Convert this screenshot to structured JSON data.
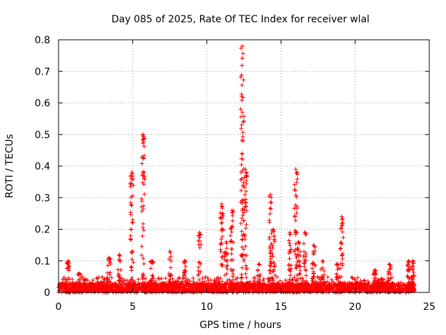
{
  "chart_data": {
    "type": "scatter",
    "title": "Day 085 of 2025, Rate Of TEC Index for receiver wlal",
    "xlabel": "GPS time / hours",
    "ylabel": "ROTI / TECUs",
    "xlim": [
      0,
      25
    ],
    "ylim": [
      0,
      0.8
    ],
    "xticks": [
      0,
      5,
      10,
      15,
      20,
      25
    ],
    "yticks": [
      0,
      0.1,
      0.2,
      0.3,
      0.4,
      0.5,
      0.6,
      0.7,
      0.8
    ],
    "xtick_labels": [
      "0",
      "5",
      "10",
      "15",
      "20",
      "25"
    ],
    "ytick_labels": [
      "0",
      "0.1",
      "0.2",
      "0.3",
      "0.4",
      "0.5",
      "0.6",
      "0.7",
      "0.8"
    ],
    "grid": true,
    "marker": "+",
    "color": "#ff0000",
    "baseline": {
      "x_range": [
        0,
        24
      ],
      "typical_max": 0.05
    },
    "spikes": [
      {
        "x": 0.65,
        "ymax": 0.1
      },
      {
        "x": 1.4,
        "ymax": 0.06
      },
      {
        "x": 3.4,
        "ymax": 0.11
      },
      {
        "x": 4.1,
        "ymax": 0.12
      },
      {
        "x": 4.95,
        "ymax": 0.38
      },
      {
        "x": 5.7,
        "ymax": 0.5
      },
      {
        "x": 6.3,
        "ymax": 0.1
      },
      {
        "x": 7.5,
        "ymax": 0.13
      },
      {
        "x": 8.5,
        "ymax": 0.1
      },
      {
        "x": 9.5,
        "ymax": 0.19
      },
      {
        "x": 11.0,
        "ymax": 0.28
      },
      {
        "x": 11.3,
        "ymax": 0.16
      },
      {
        "x": 11.7,
        "ymax": 0.26
      },
      {
        "x": 12.4,
        "ymax": 0.78
      },
      {
        "x": 12.6,
        "ymax": 0.39
      },
      {
        "x": 13.5,
        "ymax": 0.09
      },
      {
        "x": 14.3,
        "ymax": 0.31
      },
      {
        "x": 14.5,
        "ymax": 0.2
      },
      {
        "x": 15.6,
        "ymax": 0.19
      },
      {
        "x": 16.0,
        "ymax": 0.39
      },
      {
        "x": 16.2,
        "ymax": 0.16
      },
      {
        "x": 16.6,
        "ymax": 0.19
      },
      {
        "x": 17.2,
        "ymax": 0.15
      },
      {
        "x": 17.8,
        "ymax": 0.1
      },
      {
        "x": 18.8,
        "ymax": 0.09
      },
      {
        "x": 19.1,
        "ymax": 0.24
      },
      {
        "x": 21.3,
        "ymax": 0.07
      },
      {
        "x": 22.3,
        "ymax": 0.09
      },
      {
        "x": 23.6,
        "ymax": 0.1
      },
      {
        "x": 23.9,
        "ymax": 0.1
      }
    ]
  }
}
